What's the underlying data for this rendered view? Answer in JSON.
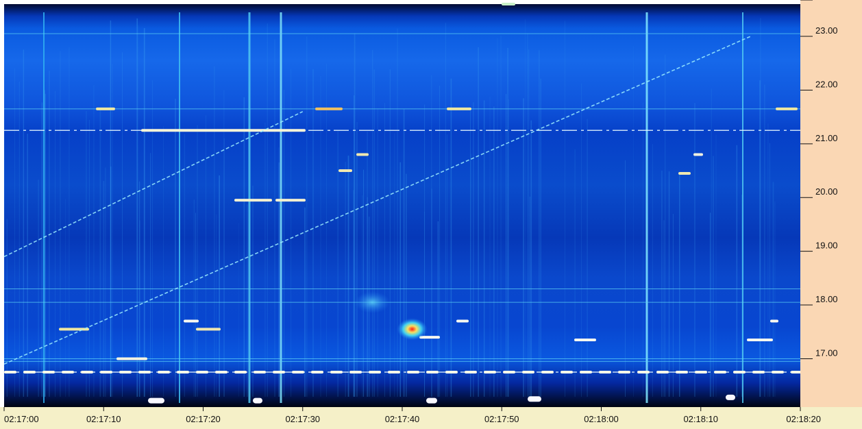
{
  "chart_data": {
    "type": "heatmap",
    "title": "",
    "xlabel": "",
    "ylabel": "",
    "x_ticks": [
      "02:17:00",
      "02:17:10",
      "02:17:20",
      "02:17:30",
      "02:17:40",
      "02:17:50",
      "02:18:00",
      "02:18:10",
      "02:18:20"
    ],
    "y_ticks": [
      "17.00",
      "18.00",
      "19.00",
      "20.00",
      "21.00",
      "22.00",
      "23.00"
    ],
    "xlim": [
      "02:17:00",
      "02:18:20"
    ],
    "ylim": [
      16.1,
      23.6
    ],
    "grid": false,
    "colormap": [
      "#000000",
      "#001a8c",
      "#0040d8",
      "#1e7cf0",
      "#46c8f0",
      "#f0f0a0",
      "#ffffff",
      "#ff3020"
    ],
    "tracks": [
      {
        "name": "diagonal-steep",
        "x": [
          "02:17:00",
          "02:17:30"
        ],
        "y": [
          18.9,
          21.6
        ]
      },
      {
        "name": "diagonal-long",
        "x": [
          "02:17:00",
          "02:18:15"
        ],
        "y": [
          16.9,
          23.0
        ]
      }
    ],
    "horizontal_bands": [
      16.75,
      16.95,
      17.0,
      18.05,
      18.3,
      21.25,
      21.65,
      23.05
    ],
    "hot_spot": {
      "x": "02:17:41",
      "y": 17.55
    }
  },
  "colors": {
    "axis_bg": "#fad7b4",
    "tick_label": "#111111",
    "bottom_bar": "#f5f0c8"
  }
}
